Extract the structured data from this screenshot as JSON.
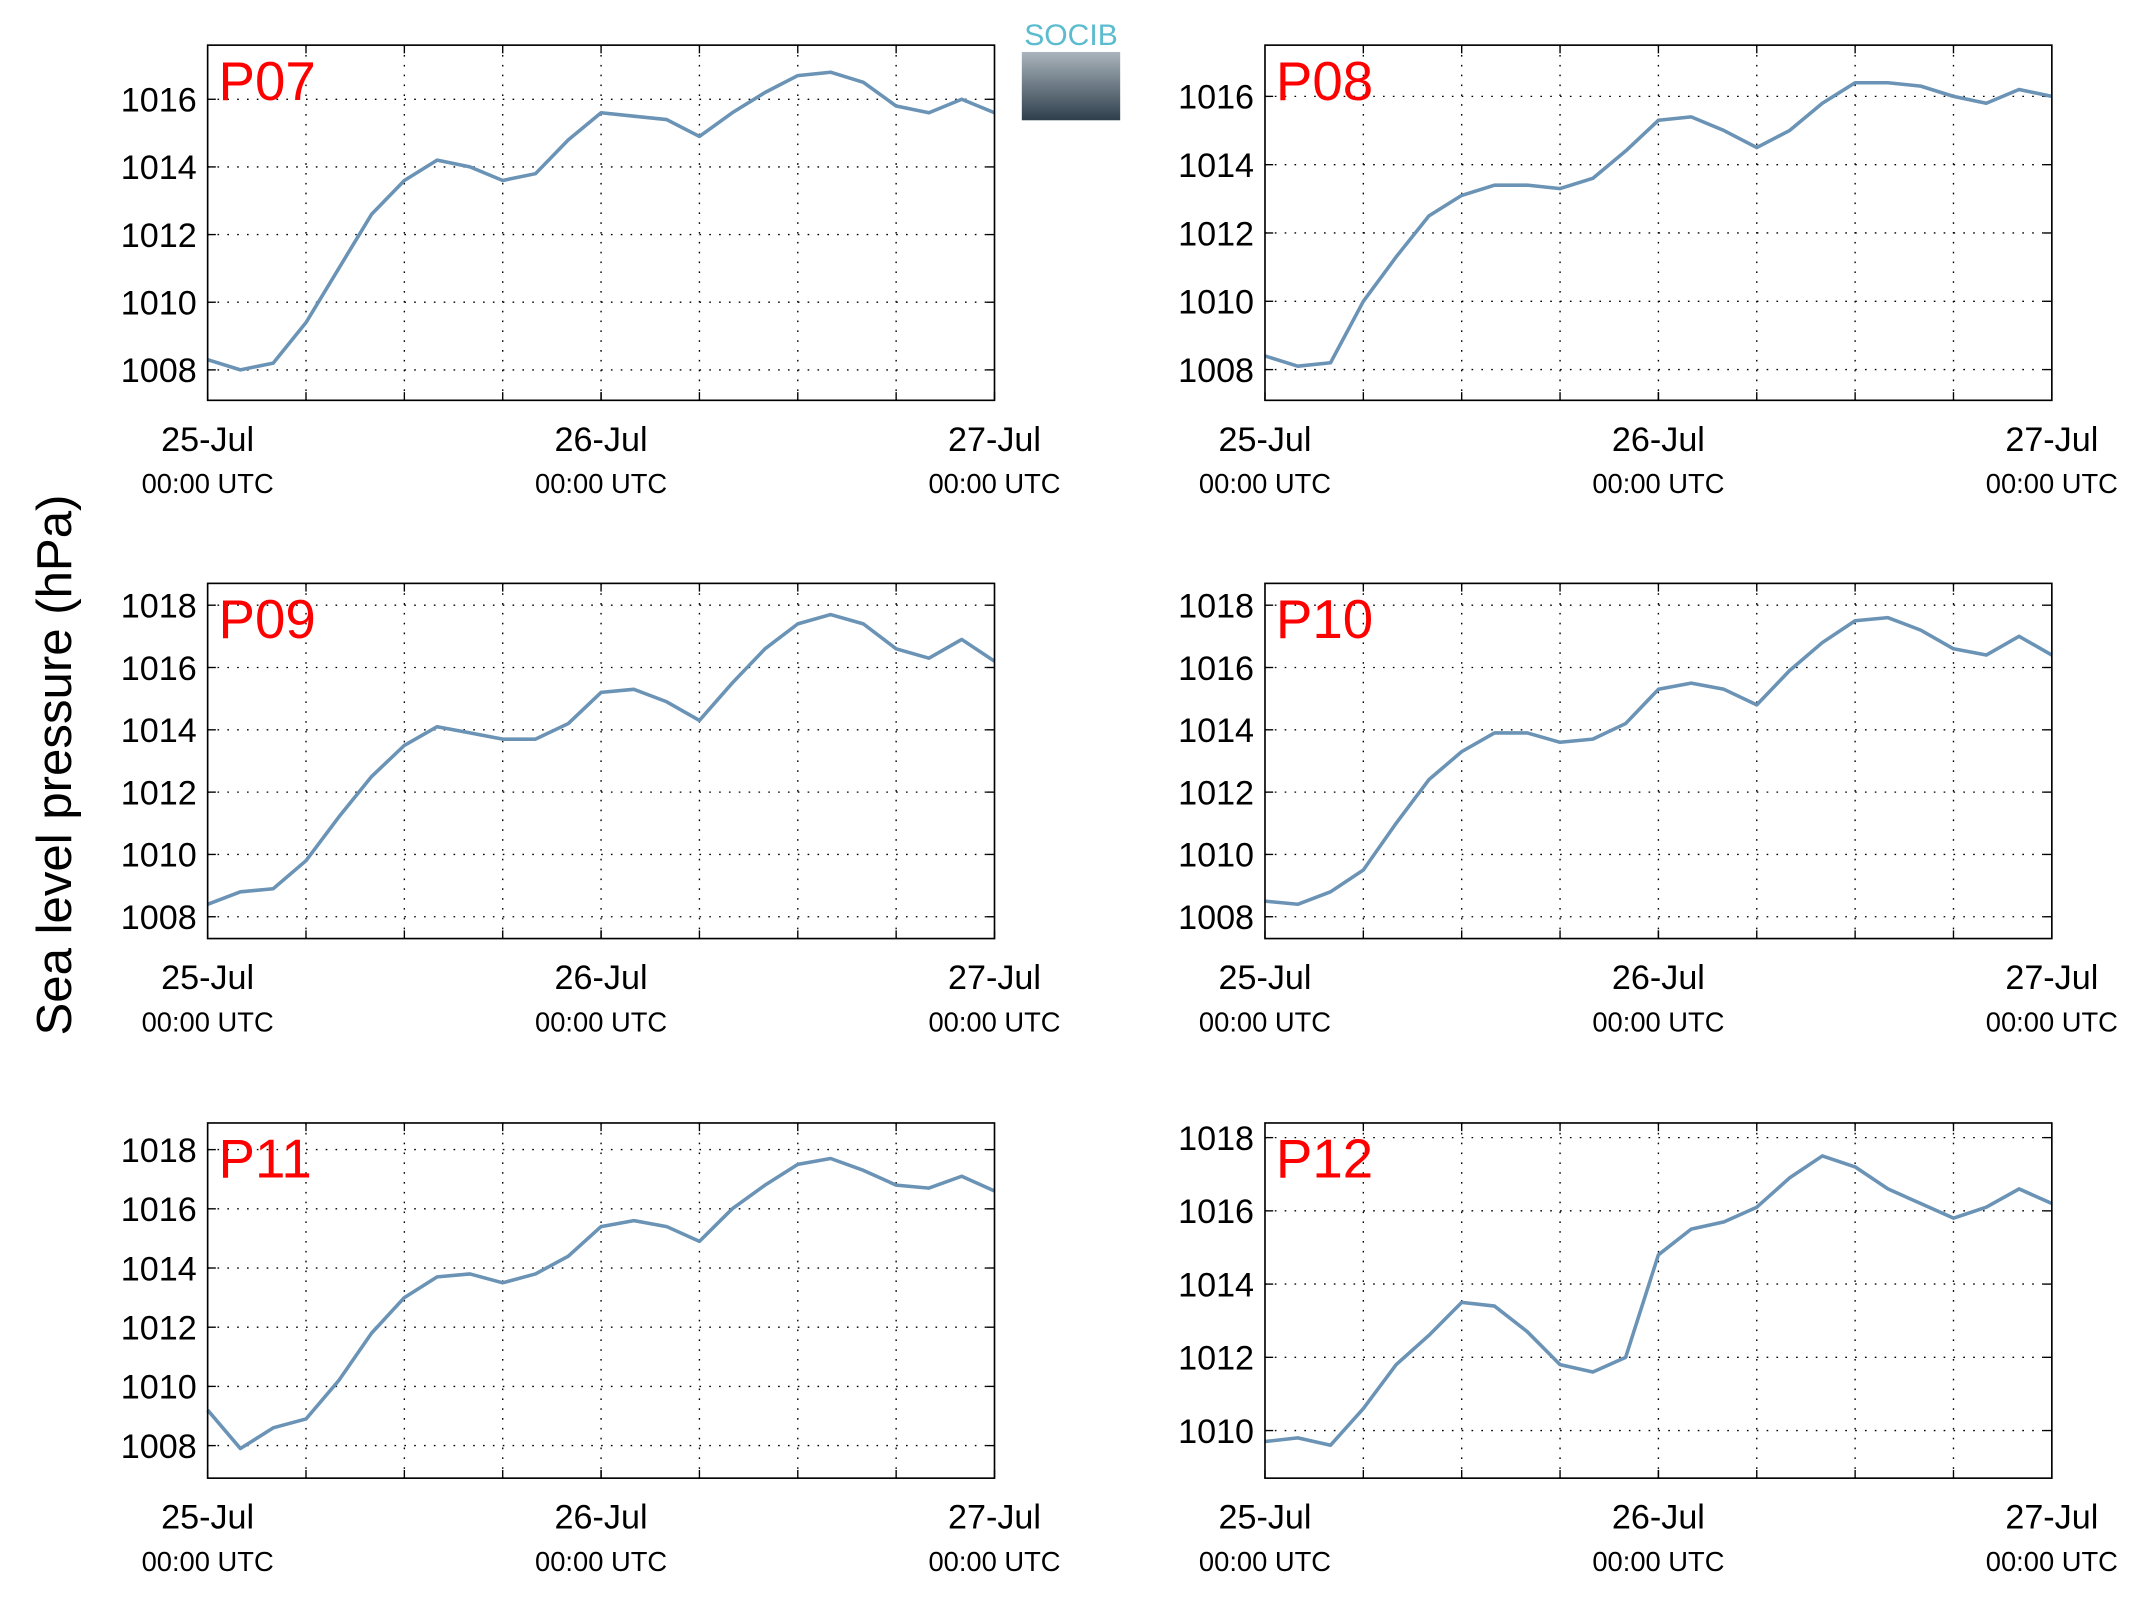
{
  "ylabel": "Sea level pressure (hPa)",
  "logo": "SOCIB",
  "chart_data": [
    {
      "type": "line",
      "title": "P07",
      "title_color": "#ff0000",
      "x": [
        "25-Jul 00:00",
        "25-Jul 02:00",
        "25-Jul 04:00",
        "25-Jul 06:00",
        "25-Jul 08:00",
        "25-Jul 10:00",
        "25-Jul 12:00",
        "25-Jul 14:00",
        "25-Jul 16:00",
        "25-Jul 18:00",
        "25-Jul 20:00",
        "25-Jul 22:00",
        "26-Jul 00:00",
        "26-Jul 02:00",
        "26-Jul 04:00",
        "26-Jul 06:00",
        "26-Jul 08:00",
        "26-Jul 10:00",
        "26-Jul 12:00",
        "26-Jul 14:00",
        "26-Jul 16:00",
        "26-Jul 18:00",
        "26-Jul 20:00",
        "26-Jul 22:00",
        "27-Jul 00:00"
      ],
      "values": [
        1008.3,
        1008.0,
        1008.2,
        1009.4,
        1011.0,
        1012.6,
        1013.6,
        1014.2,
        1014.0,
        1013.6,
        1013.8,
        1014.8,
        1015.6,
        1015.5,
        1015.4,
        1014.9,
        1015.6,
        1016.2,
        1016.7,
        1016.8,
        1016.5,
        1015.8,
        1015.6,
        1016.0,
        1015.6
      ],
      "color": "#6a93b5",
      "xlim": [
        "25-Jul 00:00",
        "27-Jul 00:00"
      ],
      "xticks": [
        {
          "value": "25-Jul 00:00",
          "label": [
            "25-Jul",
            "00:00 UTC"
          ]
        },
        {
          "value": "26-Jul 00:00",
          "label": [
            "26-Jul",
            "00:00 UTC"
          ]
        },
        {
          "value": "27-Jul 00:00",
          "label": [
            "27-Jul",
            "00:00 UTC"
          ]
        }
      ],
      "xgrid": [
        "25-Jul 06:00",
        "25-Jul 12:00",
        "25-Jul 18:00",
        "26-Jul 00:00",
        "26-Jul 06:00",
        "26-Jul 12:00",
        "26-Jul 18:00"
      ],
      "ylim": [
        1007.1,
        1017.6
      ],
      "yticks": [
        1008,
        1010,
        1012,
        1014,
        1016
      ],
      "grid": true
    },
    {
      "type": "line",
      "title": "P08",
      "title_color": "#ff0000",
      "x": [
        "25-Jul 00:00",
        "25-Jul 02:00",
        "25-Jul 04:00",
        "25-Jul 06:00",
        "25-Jul 08:00",
        "25-Jul 10:00",
        "25-Jul 12:00",
        "25-Jul 14:00",
        "25-Jul 16:00",
        "25-Jul 18:00",
        "25-Jul 20:00",
        "25-Jul 22:00",
        "26-Jul 00:00",
        "26-Jul 02:00",
        "26-Jul 04:00",
        "26-Jul 06:00",
        "26-Jul 08:00",
        "26-Jul 10:00",
        "26-Jul 12:00",
        "26-Jul 14:00",
        "26-Jul 16:00",
        "26-Jul 18:00",
        "26-Jul 20:00",
        "26-Jul 22:00",
        "27-Jul 00:00"
      ],
      "values": [
        1008.4,
        1008.1,
        1008.2,
        1010.0,
        1011.3,
        1012.5,
        1013.1,
        1013.4,
        1013.4,
        1013.3,
        1013.6,
        1014.4,
        1015.3,
        1015.4,
        1015.0,
        1014.5,
        1015.0,
        1015.8,
        1016.4,
        1016.4,
        1016.3,
        1016.0,
        1015.8,
        1016.2,
        1016.0
      ],
      "color": "#6a93b5",
      "xlim": [
        "25-Jul 00:00",
        "27-Jul 00:00"
      ],
      "xticks": [
        {
          "value": "25-Jul 00:00",
          "label": [
            "25-Jul",
            "00:00 UTC"
          ]
        },
        {
          "value": "26-Jul 00:00",
          "label": [
            "26-Jul",
            "00:00 UTC"
          ]
        },
        {
          "value": "27-Jul 00:00",
          "label": [
            "27-Jul",
            "00:00 UTC"
          ]
        }
      ],
      "xgrid": [
        "25-Jul 06:00",
        "25-Jul 12:00",
        "25-Jul 18:00",
        "26-Jul 00:00",
        "26-Jul 06:00",
        "26-Jul 12:00",
        "26-Jul 18:00"
      ],
      "ylim": [
        1007.1,
        1017.5
      ],
      "yticks": [
        1008,
        1010,
        1012,
        1014,
        1016
      ],
      "grid": true
    },
    {
      "type": "line",
      "title": "P09",
      "title_color": "#ff0000",
      "x": [
        "25-Jul 00:00",
        "25-Jul 02:00",
        "25-Jul 04:00",
        "25-Jul 06:00",
        "25-Jul 08:00",
        "25-Jul 10:00",
        "25-Jul 12:00",
        "25-Jul 14:00",
        "25-Jul 16:00",
        "25-Jul 18:00",
        "25-Jul 20:00",
        "25-Jul 22:00",
        "26-Jul 00:00",
        "26-Jul 02:00",
        "26-Jul 04:00",
        "26-Jul 06:00",
        "26-Jul 08:00",
        "26-Jul 10:00",
        "26-Jul 12:00",
        "26-Jul 14:00",
        "26-Jul 16:00",
        "26-Jul 18:00",
        "26-Jul 20:00",
        "26-Jul 22:00",
        "27-Jul 00:00"
      ],
      "values": [
        1008.4,
        1008.8,
        1008.9,
        1009.8,
        1011.2,
        1012.5,
        1013.5,
        1014.1,
        1013.9,
        1013.7,
        1013.7,
        1014.2,
        1015.2,
        1015.3,
        1014.9,
        1014.3,
        1015.5,
        1016.6,
        1017.4,
        1017.7,
        1017.4,
        1016.6,
        1016.3,
        1016.9,
        1016.2
      ],
      "color": "#6a93b5",
      "xlim": [
        "25-Jul 00:00",
        "27-Jul 00:00"
      ],
      "xticks": [
        {
          "value": "25-Jul 00:00",
          "label": [
            "25-Jul",
            "00:00 UTC"
          ]
        },
        {
          "value": "26-Jul 00:00",
          "label": [
            "26-Jul",
            "00:00 UTC"
          ]
        },
        {
          "value": "27-Jul 00:00",
          "label": [
            "27-Jul",
            "00:00 UTC"
          ]
        }
      ],
      "xgrid": [
        "25-Jul 06:00",
        "25-Jul 12:00",
        "25-Jul 18:00",
        "26-Jul 00:00",
        "26-Jul 06:00",
        "26-Jul 12:00",
        "26-Jul 18:00"
      ],
      "ylim": [
        1007.3,
        1018.7
      ],
      "yticks": [
        1008,
        1010,
        1012,
        1014,
        1016,
        1018
      ],
      "grid": true
    },
    {
      "type": "line",
      "title": "P10",
      "title_color": "#ff0000",
      "x": [
        "25-Jul 00:00",
        "25-Jul 02:00",
        "25-Jul 04:00",
        "25-Jul 06:00",
        "25-Jul 08:00",
        "25-Jul 10:00",
        "25-Jul 12:00",
        "25-Jul 14:00",
        "25-Jul 16:00",
        "25-Jul 18:00",
        "25-Jul 20:00",
        "25-Jul 22:00",
        "26-Jul 00:00",
        "26-Jul 02:00",
        "26-Jul 04:00",
        "26-Jul 06:00",
        "26-Jul 08:00",
        "26-Jul 10:00",
        "26-Jul 12:00",
        "26-Jul 14:00",
        "26-Jul 16:00",
        "26-Jul 18:00",
        "26-Jul 20:00",
        "26-Jul 22:00",
        "27-Jul 00:00"
      ],
      "values": [
        1008.5,
        1008.4,
        1008.8,
        1009.5,
        1011.0,
        1012.4,
        1013.3,
        1013.9,
        1013.9,
        1013.6,
        1013.7,
        1014.2,
        1015.3,
        1015.5,
        1015.3,
        1014.8,
        1015.9,
        1016.8,
        1017.5,
        1017.6,
        1017.2,
        1016.6,
        1016.4,
        1017.0,
        1016.4
      ],
      "color": "#6a93b5",
      "xlim": [
        "25-Jul 00:00",
        "27-Jul 00:00"
      ],
      "xticks": [
        {
          "value": "25-Jul 00:00",
          "label": [
            "25-Jul",
            "00:00 UTC"
          ]
        },
        {
          "value": "26-Jul 00:00",
          "label": [
            "26-Jul",
            "00:00 UTC"
          ]
        },
        {
          "value": "27-Jul 00:00",
          "label": [
            "27-Jul",
            "00:00 UTC"
          ]
        }
      ],
      "xgrid": [
        "25-Jul 06:00",
        "25-Jul 12:00",
        "25-Jul 18:00",
        "26-Jul 00:00",
        "26-Jul 06:00",
        "26-Jul 12:00",
        "26-Jul 18:00"
      ],
      "ylim": [
        1007.3,
        1018.7
      ],
      "yticks": [
        1008,
        1010,
        1012,
        1014,
        1016,
        1018
      ],
      "grid": true
    },
    {
      "type": "line",
      "title": "P11",
      "title_color": "#ff0000",
      "x": [
        "25-Jul 00:00",
        "25-Jul 02:00",
        "25-Jul 04:00",
        "25-Jul 06:00",
        "25-Jul 08:00",
        "25-Jul 10:00",
        "25-Jul 12:00",
        "25-Jul 14:00",
        "25-Jul 16:00",
        "25-Jul 18:00",
        "25-Jul 20:00",
        "25-Jul 22:00",
        "26-Jul 00:00",
        "26-Jul 02:00",
        "26-Jul 04:00",
        "26-Jul 06:00",
        "26-Jul 08:00",
        "26-Jul 10:00",
        "26-Jul 12:00",
        "26-Jul 14:00",
        "26-Jul 16:00",
        "26-Jul 18:00",
        "26-Jul 20:00",
        "26-Jul 22:00",
        "27-Jul 00:00"
      ],
      "values": [
        1009.2,
        1007.9,
        1008.6,
        1008.9,
        1010.2,
        1011.8,
        1013.0,
        1013.7,
        1013.8,
        1013.5,
        1013.8,
        1014.4,
        1015.4,
        1015.6,
        1015.4,
        1014.9,
        1016.0,
        1016.8,
        1017.5,
        1017.7,
        1017.3,
        1016.8,
        1016.7,
        1017.1,
        1016.6
      ],
      "color": "#6a93b5",
      "xlim": [
        "25-Jul 00:00",
        "27-Jul 00:00"
      ],
      "xticks": [
        {
          "value": "25-Jul 00:00",
          "label": [
            "25-Jul",
            "00:00 UTC"
          ]
        },
        {
          "value": "26-Jul 00:00",
          "label": [
            "26-Jul",
            "00:00 UTC"
          ]
        },
        {
          "value": "27-Jul 00:00",
          "label": [
            "27-Jul",
            "00:00 UTC"
          ]
        }
      ],
      "xgrid": [
        "25-Jul 06:00",
        "25-Jul 12:00",
        "25-Jul 18:00",
        "26-Jul 00:00",
        "26-Jul 06:00",
        "26-Jul 12:00",
        "26-Jul 18:00"
      ],
      "ylim": [
        1006.9,
        1018.9
      ],
      "yticks": [
        1008,
        1010,
        1012,
        1014,
        1016,
        1018
      ],
      "grid": true
    },
    {
      "type": "line",
      "title": "P12",
      "title_color": "#ff0000",
      "x": [
        "25-Jul 00:00",
        "25-Jul 02:00",
        "25-Jul 04:00",
        "25-Jul 06:00",
        "25-Jul 08:00",
        "25-Jul 10:00",
        "25-Jul 12:00",
        "25-Jul 14:00",
        "25-Jul 16:00",
        "25-Jul 18:00",
        "25-Jul 20:00",
        "25-Jul 22:00",
        "26-Jul 00:00",
        "26-Jul 02:00",
        "26-Jul 04:00",
        "26-Jul 06:00",
        "26-Jul 08:00",
        "26-Jul 10:00",
        "26-Jul 12:00",
        "26-Jul 14:00",
        "26-Jul 16:00",
        "26-Jul 18:00",
        "26-Jul 20:00",
        "26-Jul 22:00",
        "27-Jul 00:00"
      ],
      "values": [
        1009.7,
        1009.8,
        1009.6,
        1010.6,
        1011.8,
        1012.6,
        1013.5,
        1013.4,
        1012.7,
        1011.8,
        1011.6,
        1012.0,
        1014.8,
        1015.5,
        1015.7,
        1016.1,
        1016.9,
        1017.5,
        1017.2,
        1016.6,
        1016.2,
        1015.8,
        1016.1,
        1016.6,
        1016.2
      ],
      "color": "#6a93b5",
      "xlim": [
        "25-Jul 00:00",
        "27-Jul 00:00"
      ],
      "xticks": [
        {
          "value": "25-Jul 00:00",
          "label": [
            "25-Jul",
            "00:00 UTC"
          ]
        },
        {
          "value": "26-Jul 00:00",
          "label": [
            "26-Jul",
            "00:00 UTC"
          ]
        },
        {
          "value": "27-Jul 00:00",
          "label": [
            "27-Jul",
            "00:00 UTC"
          ]
        }
      ],
      "xgrid": [
        "25-Jul 06:00",
        "25-Jul 12:00",
        "25-Jul 18:00",
        "26-Jul 00:00",
        "26-Jul 06:00",
        "26-Jul 12:00",
        "26-Jul 18:00"
      ],
      "ylim": [
        1008.7,
        1018.4
      ],
      "yticks": [
        1010,
        1012,
        1014,
        1016,
        1018
      ],
      "grid": true
    }
  ]
}
